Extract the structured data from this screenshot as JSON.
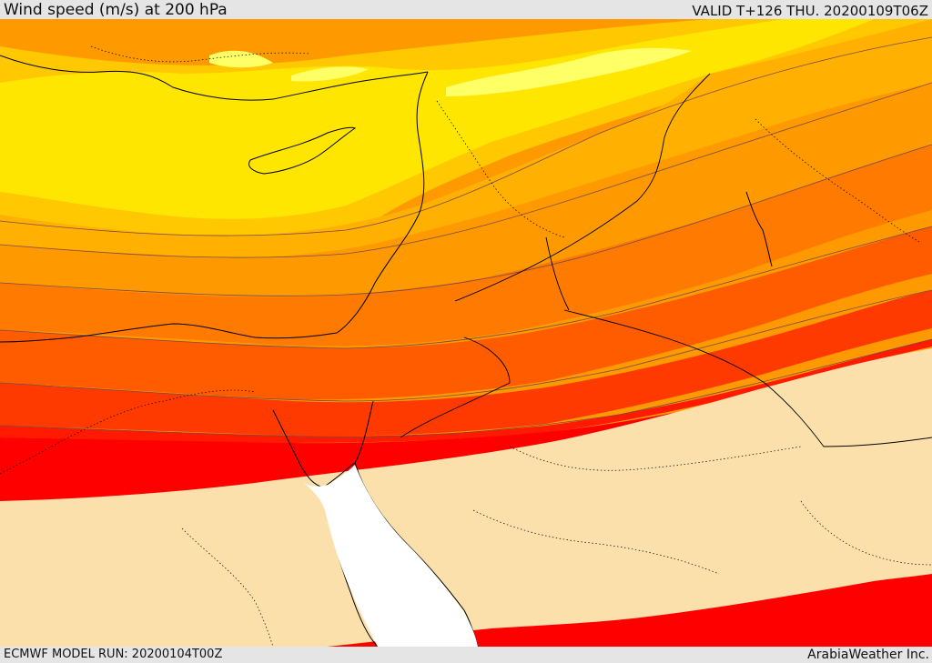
{
  "header": {
    "title": "Wind speed (m/s) at 200 hPa",
    "valid_time": "VALID T+126 THU. 20200109T06Z"
  },
  "footer": {
    "model_run": "ECMWF MODEL RUN: 20200104T00Z",
    "credit": "ArabiaWeather Inc."
  },
  "map": {
    "variable": "wind speed",
    "level": "200 hPa",
    "fill_colors": {
      "low": "#fce0ac",
      "band_1": "#ffff66",
      "band_2": "#ffe600",
      "band_3": "#ffc800",
      "band_4": "#ffb000",
      "band_5": "#ff9900",
      "band_6": "#ff7a00",
      "band_7": "#ff5c00",
      "band_8": "#ff3a00",
      "band_9": "#ff1a00",
      "band_10": "#ff0000",
      "water": "#ffffff",
      "coastline": "#000000",
      "border": "#000000"
    }
  }
}
